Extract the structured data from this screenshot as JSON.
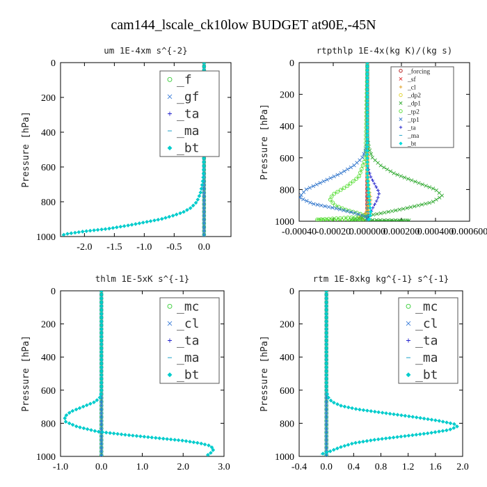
{
  "suptitle": "cam144_lscale_ck10low  BUDGET at90E,-45N",
  "chart_data": [
    {
      "id": "um",
      "type": "line",
      "title": "um   1E-4xm  s^{-2}",
      "ylabel": "Pressure  [hPa]",
      "xlim": [
        -2.4,
        0.45
      ],
      "ylim": [
        1000,
        0
      ],
      "xticks": [
        "-2.0",
        "-1.5",
        "-1.0",
        "-0.5",
        "0.0"
      ],
      "xtick_values": [
        -2.0,
        -1.5,
        -1.0,
        -0.5,
        0.0
      ],
      "yticks": [
        "0",
        "200",
        "400",
        "600",
        "800",
        "1000"
      ],
      "ytick_values": [
        0,
        200,
        400,
        600,
        800,
        1000
      ],
      "legend_position": "top-right",
      "legend_style": "large",
      "series": [
        {
          "name": "_f",
          "color": "#33cc33",
          "marker": "o",
          "x": [
            0,
            0,
            0,
            0,
            0,
            0
          ],
          "y": [
            0,
            200,
            400,
            600,
            800,
            1000
          ]
        },
        {
          "name": "_gf",
          "color": "#3b7dd8",
          "marker": "x",
          "x": [
            0,
            0,
            0
          ],
          "y": [
            0,
            500,
            1000
          ]
        },
        {
          "name": "_ta",
          "color": "#2222cc",
          "marker": "+",
          "x": [
            0,
            0,
            0
          ],
          "y": [
            0,
            500,
            1000
          ]
        },
        {
          "name": "_ma",
          "color": "#1aa0c8",
          "marker": "-",
          "x": [
            0,
            0,
            0
          ],
          "y": [
            0,
            500,
            1000
          ]
        },
        {
          "name": "_bt",
          "color": "#00cccc",
          "marker": "d",
          "x": [
            0.0,
            0.0,
            0.0,
            -0.005,
            -0.01,
            -0.03,
            -0.06,
            -0.12,
            -0.22,
            -0.35,
            -0.52,
            -0.72,
            -0.95,
            -1.25,
            -1.6,
            -2.0,
            -2.3,
            -2.4
          ],
          "y": [
            0,
            200,
            400,
            600,
            650,
            700,
            750,
            800,
            835,
            860,
            880,
            900,
            915,
            935,
            955,
            970,
            985,
            995
          ]
        }
      ]
    },
    {
      "id": "rtpthlp",
      "type": "line",
      "title": "rtpthlp   1E-4x(kg K)/(kg s)",
      "ylabel": "Pressure  [hPa]",
      "xlim": [
        -0.0004,
        0.0006
      ],
      "ylim": [
        1000,
        0
      ],
      "xticks": [
        "-0.00040",
        "-0.00020",
        "0.000000",
        "0.000200",
        "0.000400",
        "0.000600"
      ],
      "xtick_values": [
        -0.0004,
        -0.0002,
        0.0,
        0.0002,
        0.0004,
        0.0006
      ],
      "yticks": [
        "0",
        "200",
        "400",
        "600",
        "800",
        "1000"
      ],
      "ytick_values": [
        0,
        200,
        400,
        600,
        800,
        1000
      ],
      "legend_position": "top-right",
      "legend_style": "small",
      "series": [
        {
          "name": "_forcing",
          "color": "#b01010",
          "marker": "o",
          "x": [
            0,
            0,
            0
          ],
          "y": [
            0,
            500,
            1000
          ]
        },
        {
          "name": "_sf",
          "color": "#e03030",
          "marker": "x",
          "x": [
            0,
            0,
            0
          ],
          "y": [
            0,
            500,
            1000
          ]
        },
        {
          "name": "_cl",
          "color": "#e0a020",
          "marker": "+",
          "x": [
            0,
            0,
            0,
            1e-05,
            2e-05,
            2e-05,
            0.0,
            -5e-05,
            0.0
          ],
          "y": [
            0,
            600,
            700,
            800,
            850,
            900,
            940,
            975,
            1000
          ]
        },
        {
          "name": "_dp2",
          "color": "#e0d020",
          "marker": "o",
          "x": [
            0,
            0,
            1e-05,
            0.0,
            0.0
          ],
          "y": [
            0,
            700,
            850,
            950,
            1000
          ]
        },
        {
          "name": "_dp1",
          "color": "#33aa33",
          "marker": "x",
          "x": [
            0.0,
            0.0,
            0.0,
            1e-05,
            3e-05,
            8e-05,
            0.00016,
            0.00028,
            0.0004,
            0.00044,
            0.00038,
            0.00022,
            8e-05,
            0.0,
            -4e-05,
            -0.0001,
            0.00025,
            0.0
          ],
          "y": [
            0,
            400,
            470,
            540,
            600,
            650,
            700,
            750,
            800,
            840,
            880,
            920,
            950,
            965,
            980,
            990,
            995,
            1000
          ]
        },
        {
          "name": "_tp2",
          "color": "#55dd33",
          "marker": "o",
          "x": [
            0.0,
            -1e-05,
            -5e-05,
            -0.00012,
            -0.0002,
            -0.00022,
            -0.00019,
            -0.00012,
            -5e-05,
            0.0,
            -0.0003,
            0.0
          ],
          "y": [
            0,
            600,
            720,
            780,
            830,
            860,
            900,
            930,
            950,
            970,
            990,
            1000
          ]
        },
        {
          "name": "_tp1",
          "color": "#3377cc",
          "marker": "x",
          "x": [
            0.0,
            0.0,
            -1e-05,
            -3e-05,
            -8e-05,
            -0.00016,
            -0.00026,
            -0.00036,
            -0.0004,
            -0.00032,
            -0.00018,
            -7e-05,
            0.0,
            0.0
          ],
          "y": [
            0,
            500,
            550,
            600,
            650,
            700,
            750,
            800,
            850,
            890,
            920,
            950,
            975,
            1000
          ]
        },
        {
          "name": "_ta",
          "color": "#2222cc",
          "marker": "+",
          "x": [
            0.0,
            0.0,
            2e-05,
            5e-05,
            7e-05,
            6e-05,
            3e-05,
            0.0
          ],
          "y": [
            0,
            650,
            720,
            780,
            820,
            860,
            920,
            1000
          ]
        },
        {
          "name": "_ma",
          "color": "#1aa0c8",
          "marker": "-",
          "x": [
            0,
            0,
            0
          ],
          "y": [
            0,
            500,
            1000
          ]
        },
        {
          "name": "_bt",
          "color": "#00dddd",
          "marker": "d",
          "x": [
            0.0,
            0.0,
            1e-05,
            2e-05,
            1e-05,
            0.0
          ],
          "y": [
            0,
            700,
            850,
            950,
            990,
            1000
          ]
        }
      ]
    },
    {
      "id": "thlm",
      "type": "line",
      "title": "thlm   1E-5xK  s^{-1}",
      "ylabel": "Pressure  [hPa]",
      "xlim": [
        -1.0,
        3.0
      ],
      "ylim": [
        1000,
        0
      ],
      "xticks": [
        "-1.0",
        "0.0",
        "1.0",
        "2.0",
        "3.0"
      ],
      "xtick_values": [
        -1.0,
        0.0,
        1.0,
        2.0,
        3.0
      ],
      "yticks": [
        "0",
        "200",
        "400",
        "600",
        "800",
        "1000"
      ],
      "ytick_values": [
        0,
        200,
        400,
        600,
        800,
        1000
      ],
      "legend_position": "top-right",
      "legend_style": "large",
      "series": [
        {
          "name": "_mc",
          "color": "#33cc33",
          "marker": "o",
          "x": [
            0,
            0,
            0,
            0,
            0,
            0
          ],
          "y": [
            0,
            200,
            400,
            600,
            800,
            1000
          ]
        },
        {
          "name": "_cl",
          "color": "#3b7dd8",
          "marker": "x",
          "x": [
            0,
            0,
            0
          ],
          "y": [
            0,
            500,
            1000
          ]
        },
        {
          "name": "_ta",
          "color": "#2222cc",
          "marker": "+",
          "x": [
            0,
            0,
            0
          ],
          "y": [
            0,
            500,
            1000
          ]
        },
        {
          "name": "_ma",
          "color": "#1aa0c8",
          "marker": "-",
          "x": [
            0,
            0,
            0
          ],
          "y": [
            0,
            500,
            1000
          ]
        },
        {
          "name": "_bt",
          "color": "#00cccc",
          "marker": "d",
          "x": [
            0.0,
            0.0,
            0.0,
            -0.02,
            -0.15,
            -0.45,
            -0.75,
            -0.9,
            -0.88,
            -0.6,
            -0.1,
            0.6,
            1.4,
            2.0,
            2.4,
            2.65,
            2.75,
            2.7,
            2.6,
            2.65
          ],
          "y": [
            0,
            200,
            600,
            640,
            670,
            700,
            730,
            760,
            790,
            820,
            850,
            870,
            890,
            905,
            920,
            935,
            955,
            975,
            990,
            1000
          ]
        }
      ]
    },
    {
      "id": "rtm",
      "type": "line",
      "title": "rtm   1E-8xkg  kg^{-1}  s^{-1}",
      "ylabel": "Pressure  [hPa]",
      "xlim": [
        -0.4,
        2.0
      ],
      "ylim": [
        1000,
        0
      ],
      "xticks": [
        "-0.4",
        "0.0",
        "0.4",
        "0.8",
        "1.2",
        "1.6",
        "2.0"
      ],
      "xtick_values": [
        -0.4,
        0.0,
        0.4,
        0.8,
        1.2,
        1.6,
        2.0
      ],
      "yticks": [
        "0",
        "200",
        "400",
        "600",
        "800",
        "1000"
      ],
      "ytick_values": [
        0,
        200,
        400,
        600,
        800,
        1000
      ],
      "legend_position": "top-right",
      "legend_style": "large",
      "series": [
        {
          "name": "_mc",
          "color": "#33cc33",
          "marker": "o",
          "x": [
            0,
            0,
            0,
            0,
            0,
            0
          ],
          "y": [
            0,
            200,
            400,
            600,
            800,
            1000
          ]
        },
        {
          "name": "_cl",
          "color": "#3b7dd8",
          "marker": "x",
          "x": [
            0,
            0,
            0
          ],
          "y": [
            0,
            500,
            1000
          ]
        },
        {
          "name": "_ta",
          "color": "#2222cc",
          "marker": "+",
          "x": [
            0,
            0,
            0
          ],
          "y": [
            0,
            500,
            1000
          ]
        },
        {
          "name": "_ma",
          "color": "#1aa0c8",
          "marker": "-",
          "x": [
            0,
            0,
            0
          ],
          "y": [
            0,
            500,
            1000
          ]
        },
        {
          "name": "_bt",
          "color": "#00cccc",
          "marker": "d",
          "x": [
            0.0,
            0.0,
            0.0,
            0.02,
            0.08,
            0.22,
            0.45,
            0.8,
            1.25,
            1.65,
            1.88,
            1.92,
            1.8,
            1.5,
            1.1,
            0.7,
            0.4,
            0.2,
            0.05,
            -0.1
          ],
          "y": [
            0,
            200,
            600,
            640,
            670,
            695,
            715,
            735,
            760,
            785,
            805,
            820,
            840,
            860,
            880,
            900,
            920,
            945,
            970,
            990
          ]
        }
      ]
    }
  ]
}
